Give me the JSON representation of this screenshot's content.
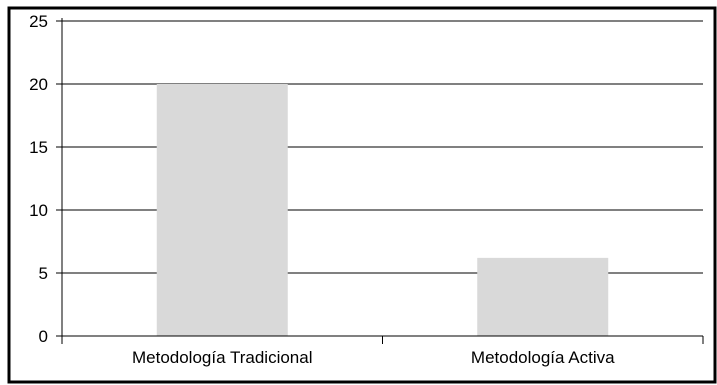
{
  "chart_data": {
    "type": "bar",
    "categories": [
      "Metodología Tradicional",
      "Metodología Activa"
    ],
    "values": [
      20,
      6.2
    ],
    "title": "",
    "xlabel": "",
    "ylabel": "",
    "ylim": [
      0,
      25
    ],
    "yticks": [
      "0",
      "5",
      "10",
      "15",
      "20",
      "25"
    ],
    "grid": true,
    "legend": "none",
    "colors": {
      "bar": "#d9d9d9",
      "grid": "#000000",
      "frame": "#000000"
    }
  }
}
